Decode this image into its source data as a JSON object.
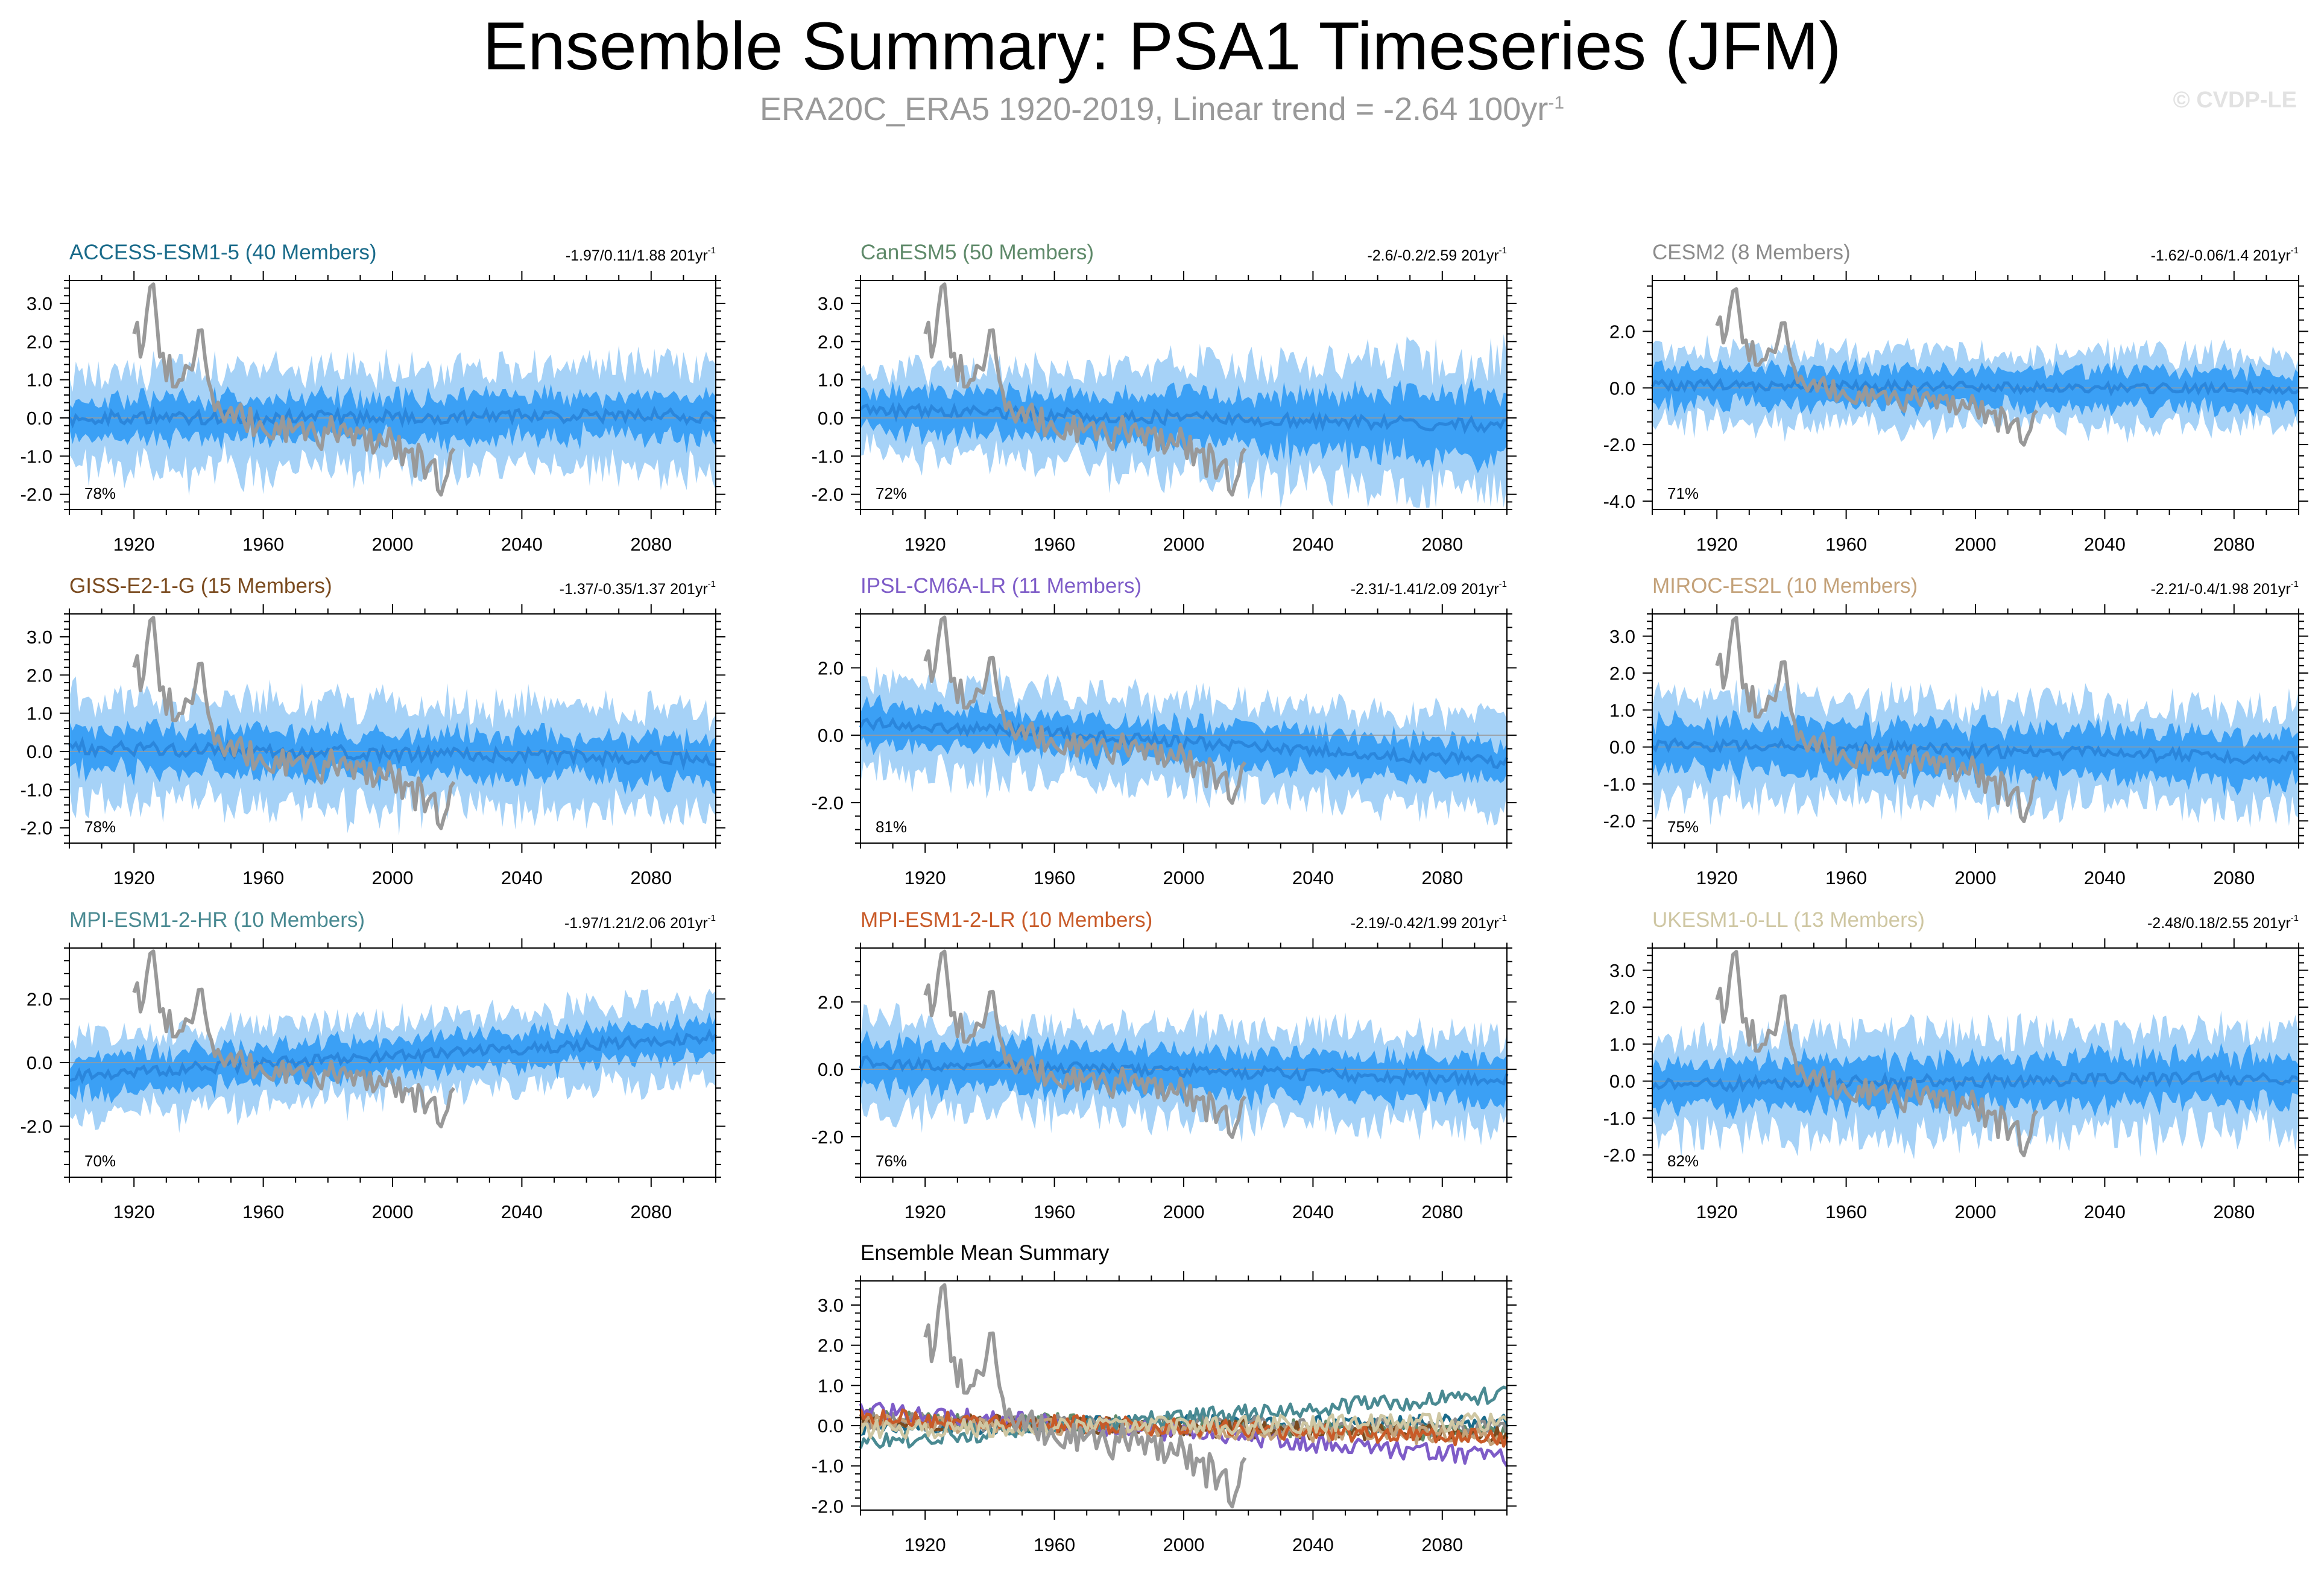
{
  "title": "Ensemble Summary: PSA1 Timeseries (JFM)",
  "subtitle": {
    "text": "ERA20C_ERA5 1920-2019, Linear trend = -2.64 100yr",
    "unit_superscript": "-1"
  },
  "copyright": "© CVDP-LE",
  "chart_data": {
    "type": "line",
    "x_range": [
      1900,
      2100
    ],
    "x_ticks": [
      1920,
      1960,
      2000,
      2040,
      2080
    ],
    "x_tick_labels": [
      "1920",
      "1960",
      "2000",
      "2040",
      "2080"
    ],
    "observations": {
      "name": "ERA20C_ERA5",
      "color": "#999999",
      "years": [
        1920,
        2019
      ],
      "key_points": [
        {
          "year": 1920,
          "value": 2.2
        },
        {
          "year": 1921,
          "value": 2.5
        },
        {
          "year": 1922,
          "value": 1.6
        },
        {
          "year": 1924,
          "value": 2.8
        },
        {
          "year": 1926,
          "value": 3.5
        },
        {
          "year": 1928,
          "value": 1.6
        },
        {
          "year": 1935,
          "value": 1.0
        },
        {
          "year": 1941,
          "value": 2.3
        },
        {
          "year": 1945,
          "value": 0.2
        },
        {
          "year": 1960,
          "value": -0.3
        },
        {
          "year": 1980,
          "value": -0.4
        },
        {
          "year": 2000,
          "value": -0.6
        },
        {
          "year": 2016,
          "value": -1.7
        },
        {
          "year": 2019,
          "value": -0.8
        }
      ]
    },
    "panels": [
      {
        "model": "ACCESS-ESM1-5 (40 Members)",
        "color": "#1a6b8a",
        "stats": "-1.97/0.11/1.88 201yr",
        "percent": "78%",
        "ylim": [
          -2.4,
          3.6
        ],
        "yticks": [
          -2,
          -1,
          0,
          1,
          2,
          3
        ],
        "ytick_labels": [
          "-2.0",
          "-1.0",
          "0.0",
          "1.0",
          "2.0",
          "3.0"
        ],
        "mean_start": 0.0,
        "mean_end": 0.05,
        "spread_inner": 0.55,
        "spread_outer": 1.2,
        "spread_growth": 0.1
      },
      {
        "model": "CanESM5 (50 Members)",
        "color": "#5f8a6a",
        "stats": "-2.6/-0.2/2.59 201yr",
        "percent": "72%",
        "ylim": [
          -2.4,
          3.6
        ],
        "yticks": [
          -2,
          -1,
          0,
          1,
          2,
          3
        ],
        "ytick_labels": [
          "-2.0",
          "-1.0",
          "0.0",
          "1.0",
          "2.0",
          "3.0"
        ],
        "mean_start": 0.2,
        "mean_end": -0.2,
        "spread_inner": 0.5,
        "spread_outer": 1.0,
        "spread_growth": 0.8
      },
      {
        "model": "CESM2 (8 Members)",
        "color": "#8c8c8c",
        "stats": "-1.62/-0.06/1.4 201yr",
        "percent": "71%",
        "ylim": [
          -4.3,
          3.8
        ],
        "yticks": [
          -4,
          -2,
          0,
          2
        ],
        "ytick_labels": [
          "-4.0",
          "-2.0",
          "0.0",
          "2.0"
        ],
        "mean_start": 0.1,
        "mean_end": -0.05,
        "spread_inner": 0.7,
        "spread_outer": 1.2,
        "spread_growth": 0.0
      },
      {
        "model": "GISS-E2-1-G (15 Members)",
        "color": "#7a4a1e",
        "stats": "-1.37/-0.35/1.37 201yr",
        "percent": "78%",
        "ylim": [
          -2.4,
          3.6
        ],
        "yticks": [
          -2,
          -1,
          0,
          1,
          2,
          3
        ],
        "ytick_labels": [
          "-2.0",
          "-1.0",
          "0.0",
          "1.0",
          "2.0",
          "3.0"
        ],
        "mean_start": 0.1,
        "mean_end": -0.2,
        "spread_inner": 0.6,
        "spread_outer": 1.3,
        "spread_growth": 0.0
      },
      {
        "model": "IPSL-CM6A-LR (11 Members)",
        "color": "#7e5cc8",
        "stats": "-2.31/-1.41/2.09 201yr",
        "percent": "81%",
        "ylim": [
          -3.2,
          3.6
        ],
        "yticks": [
          -2,
          0,
          2
        ],
        "ytick_labels": [
          "-2.0",
          "0.0",
          "2.0"
        ],
        "mean_start": 0.4,
        "mean_end": -0.8,
        "spread_inner": 0.6,
        "spread_outer": 1.3,
        "spread_growth": 0.0
      },
      {
        "model": "MIROC-ES2L (10 Members)",
        "color": "#c4a27a",
        "stats": "-2.21/-0.4/1.98 201yr",
        "percent": "75%",
        "ylim": [
          -2.6,
          3.6
        ],
        "yticks": [
          -2,
          -1,
          0,
          1,
          2,
          3
        ],
        "ytick_labels": [
          "-2.0",
          "-1.0",
          "0.0",
          "1.0",
          "2.0",
          "3.0"
        ],
        "mean_start": 0.1,
        "mean_end": -0.3,
        "spread_inner": 0.7,
        "spread_outer": 1.3,
        "spread_growth": 0.0
      },
      {
        "model": "MPI-ESM1-2-HR (10 Members)",
        "color": "#4a8a92",
        "stats": "-1.97/1.21/2.06 201yr",
        "percent": "70%",
        "ylim": [
          -3.6,
          3.6
        ],
        "yticks": [
          -2,
          0,
          2
        ],
        "ytick_labels": [
          "-2.0",
          "0.0",
          "2.0"
        ],
        "mean_start": -0.4,
        "mean_end": 0.8,
        "spread_inner": 0.6,
        "spread_outer": 1.2,
        "spread_growth": 0.0
      },
      {
        "model": "MPI-ESM1-2-LR (10 Members)",
        "color": "#c85a28",
        "stats": "-2.19/-0.42/1.99 201yr",
        "percent": "76%",
        "ylim": [
          -3.2,
          3.6
        ],
        "yticks": [
          -2,
          0,
          2
        ],
        "ytick_labels": [
          "-2.0",
          "0.0",
          "2.0"
        ],
        "mean_start": 0.2,
        "mean_end": -0.3,
        "spread_inner": 0.7,
        "spread_outer": 1.3,
        "spread_growth": 0.0
      },
      {
        "model": "UKESM1-0-LL (13 Members)",
        "color": "#cfc7a3",
        "stats": "-2.48/0.18/2.55 201yr",
        "percent": "82%",
        "ylim": [
          -2.6,
          3.6
        ],
        "yticks": [
          -2,
          -1,
          0,
          1,
          2,
          3
        ],
        "ytick_labels": [
          "-2.0",
          "-1.0",
          "0.0",
          "1.0",
          "2.0",
          "3.0"
        ],
        "mean_start": -0.1,
        "mean_end": 0.1,
        "spread_inner": 0.7,
        "spread_outer": 1.3,
        "spread_growth": 0.0
      }
    ],
    "summary": {
      "title": "Ensemble Mean Summary",
      "ylim": [
        -2.1,
        3.6
      ],
      "yticks": [
        -2,
        -1,
        0,
        1,
        2,
        3
      ],
      "ytick_labels": [
        "-2.0",
        "-1.0",
        "0.0",
        "1.0",
        "2.0",
        "3.0"
      ]
    },
    "stats_unit_superscript": "-1",
    "style": {
      "outer_band_color": "#a6d2f7",
      "inner_band_color": "#3ba0f5",
      "mean_line_color": "#2a86dc",
      "obs_color": "#999999"
    }
  }
}
